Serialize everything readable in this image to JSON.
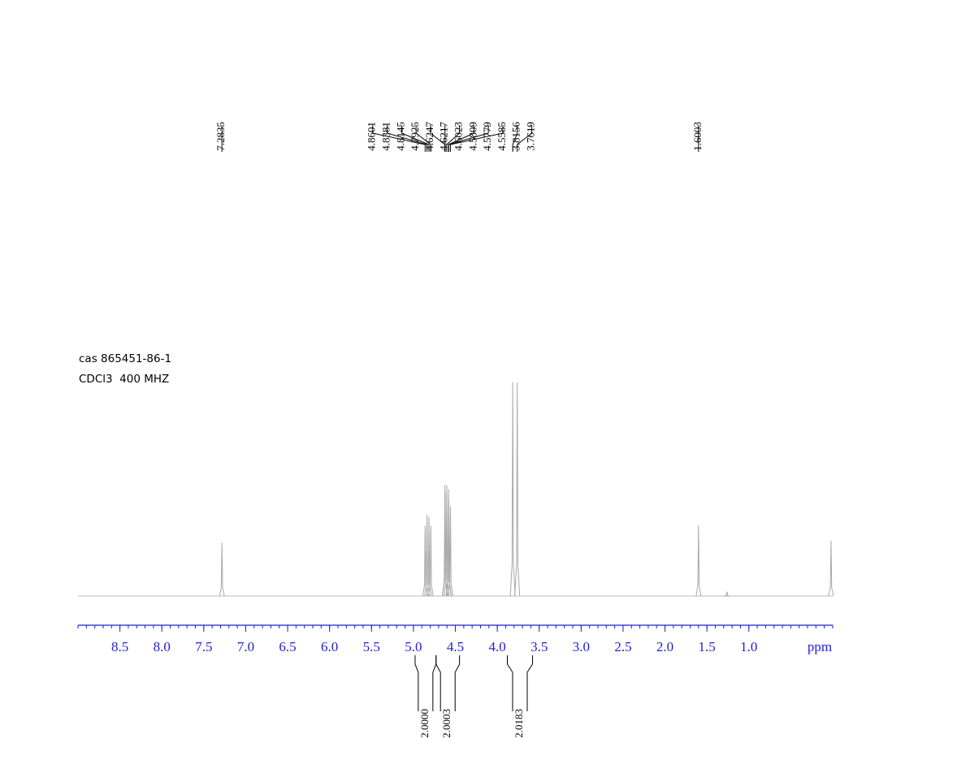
{
  "chart_data": {
    "type": "nmr",
    "sample": "cas 865451-86-1",
    "conditions": "CDCl3  400 MHZ",
    "x_unit": "ppm",
    "xlim": [
      9.0,
      0.0
    ],
    "xticks": [
      8.5,
      {
        "value": 8,
        "label": "8.0"
      },
      7.5,
      {
        "value": 7,
        "label": "7.0"
      },
      6.5,
      {
        "value": 6,
        "label": "6.0"
      },
      5.5,
      {
        "value": 5,
        "label": "5.0"
      },
      4.5,
      {
        "value": 4,
        "label": "4.0"
      },
      3.5,
      {
        "value": 3,
        "label": "3.0"
      },
      2.5,
      {
        "value": 2,
        "label": "2.0"
      },
      1.5,
      {
        "value": 1,
        "label": "1.0"
      }
    ],
    "xminorticks": [
      9.0,
      8.9,
      8.8,
      8.7,
      8.6,
      8.5,
      8.4,
      8.3,
      8.2,
      8.1,
      8.0,
      7.9,
      7.8,
      7.7,
      7.6,
      7.5,
      7.4,
      7.3,
      7.2,
      7.1,
      7.0,
      6.9,
      6.8,
      6.7,
      6.6,
      6.5,
      6.4,
      6.3,
      6.2,
      6.1,
      6.0,
      5.9,
      5.8,
      5.7,
      5.6,
      5.5,
      5.4,
      5.3,
      5.2,
      5.1,
      5.0,
      4.9,
      4.8,
      4.7,
      4.6,
      4.5,
      4.4,
      4.3,
      4.2,
      4.1,
      4.0,
      3.9,
      3.8,
      3.7,
      3.6,
      3.5,
      3.4,
      3.3,
      3.2,
      3.1,
      3.0,
      2.9,
      2.8,
      2.7,
      2.6,
      2.5,
      2.4,
      2.3,
      2.2,
      2.1,
      2.0,
      1.9,
      1.8,
      1.7,
      1.6,
      1.5,
      1.4,
      1.3,
      1.2,
      1.1,
      1.0,
      0.9,
      0.8,
      0.7,
      0.6,
      0.5,
      0.4,
      0.3,
      0.2,
      0.1,
      0.0
    ],
    "ylim": [
      0,
      100
    ],
    "color": "#a8a8a8",
    "axis_color": "#1f1fd6",
    "peaks": {
      "x": [
        7.2835,
        4.8601,
        4.8381,
        4.8145,
        4.7925,
        4.6247,
        4.6217,
        4.6023,
        4.5809,
        4.5779,
        4.5585,
        3.8156,
        3.7619,
        1.6003
      ],
      "values": [
        25,
        33,
        38,
        37,
        33,
        52,
        48,
        52,
        50,
        45,
        42,
        100,
        100,
        33
      ]
    },
    "minor_peaks": {
      "x": [
        1.26,
        0.02
      ],
      "values": [
        2,
        26
      ]
    },
    "integrals": [
      {
        "from": 4.98,
        "to": 4.73,
        "value": 2.0,
        "label": "2.0000"
      },
      {
        "from": 4.73,
        "to": 4.45,
        "value": 2.0003,
        "label": "2.0003"
      },
      {
        "from": 3.88,
        "to": 3.58,
        "value": 2.0183,
        "label": "2.0183"
      }
    ]
  }
}
